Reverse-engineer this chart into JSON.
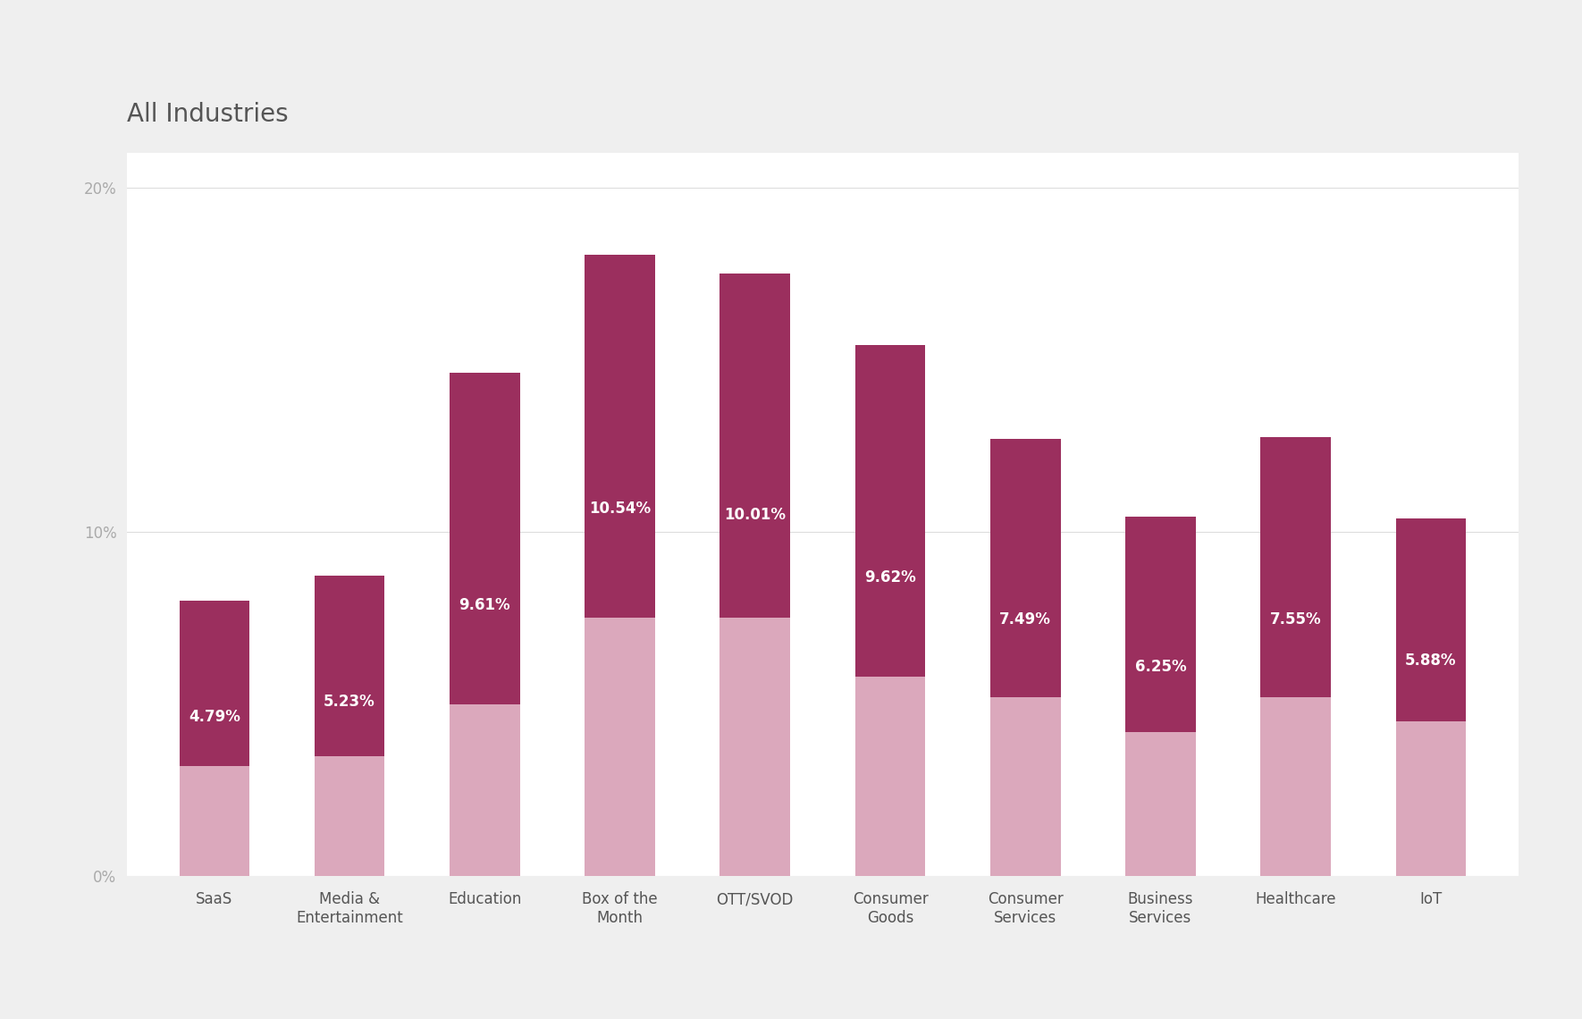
{
  "title": "All Industries",
  "categories": [
    "SaaS",
    "Media &\nEntertainment",
    "Education",
    "Box of the\nMonth",
    "OTT/SVOD",
    "Consumer\nGoods",
    "Consumer\nServices",
    "Business\nServices",
    "Healthcare",
    "IoT"
  ],
  "dark_values": [
    4.79,
    5.23,
    9.61,
    10.54,
    10.01,
    9.62,
    7.49,
    6.25,
    7.55,
    5.88
  ],
  "light_values": [
    3.2,
    3.5,
    5.0,
    7.5,
    7.5,
    5.8,
    5.2,
    4.2,
    5.2,
    4.5
  ],
  "labels": [
    "4.79%",
    "5.23%",
    "9.61%",
    "10.54%",
    "10.01%",
    "9.62%",
    "7.49%",
    "6.25%",
    "7.55%",
    "5.88%"
  ],
  "dark_color": "#9b2f5e",
  "light_color": "#dba8bc",
  "background_color": "#efefef",
  "chart_bg_color": "#ffffff",
  "title_color": "#555555",
  "tick_color": "#aaaaaa",
  "grid_color": "#dddddd",
  "ylim": [
    0,
    21
  ],
  "yticks": [
    0,
    10,
    20
  ],
  "ytick_labels": [
    "0%",
    "10%",
    "20%"
  ],
  "title_fontsize": 20,
  "label_fontsize": 12,
  "tick_fontsize": 12,
  "bar_width": 0.52
}
